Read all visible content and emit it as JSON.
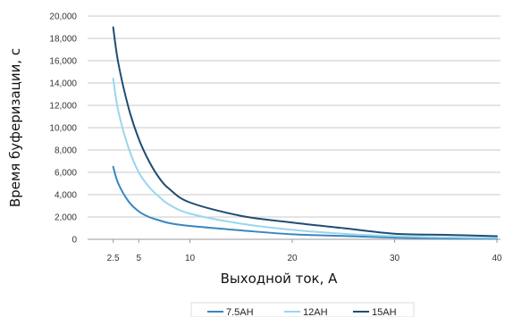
{
  "chart_data": {
    "type": "line",
    "xlabel": "Выходной ток, А",
    "ylabel": "Время буферизации, с",
    "xlim": [
      0,
      40
    ],
    "ylim": [
      0,
      20000
    ],
    "x_ticks": [
      2.5,
      5,
      10,
      20,
      30,
      40
    ],
    "x_tick_labels": [
      "2.5",
      "5",
      "10",
      "20",
      "30",
      "40"
    ],
    "y_ticks": [
      0,
      2000,
      4000,
      6000,
      8000,
      10000,
      12000,
      14000,
      16000,
      18000,
      20000
    ],
    "y_tick_labels": [
      "0",
      "2,000",
      "4,000",
      "6,000",
      "8,000",
      "10,000",
      "12,000",
      "14,000",
      "16,000",
      "18,000",
      "20,000"
    ],
    "grid": "horizontal",
    "legend_position": "bottom",
    "series": [
      {
        "name": "7.5AH",
        "color": "#3a86bf",
        "x": [
          2.5,
          3,
          4,
          5,
          6,
          7,
          8,
          10,
          15,
          20,
          25,
          30,
          35,
          40
        ],
        "y": [
          6500,
          5000,
          3400,
          2500,
          2000,
          1700,
          1450,
          1200,
          800,
          450,
          300,
          150,
          80,
          50
        ]
      },
      {
        "name": "12AH",
        "color": "#9ad6ef",
        "x": [
          2.5,
          3,
          4,
          5,
          6,
          7,
          8,
          10,
          15,
          20,
          25,
          30,
          35,
          40
        ],
        "y": [
          14400,
          11500,
          8200,
          6000,
          4700,
          3800,
          3100,
          2300,
          1400,
          850,
          500,
          280,
          180,
          120
        ]
      },
      {
        "name": "15AH",
        "color": "#1f4d73",
        "x": [
          2.5,
          3,
          4,
          5,
          6,
          7,
          8,
          10,
          15,
          20,
          25,
          30,
          35,
          40
        ],
        "y": [
          19000,
          15800,
          11800,
          9000,
          7000,
          5500,
          4500,
          3300,
          2100,
          1500,
          1000,
          500,
          400,
          280
        ]
      }
    ]
  }
}
